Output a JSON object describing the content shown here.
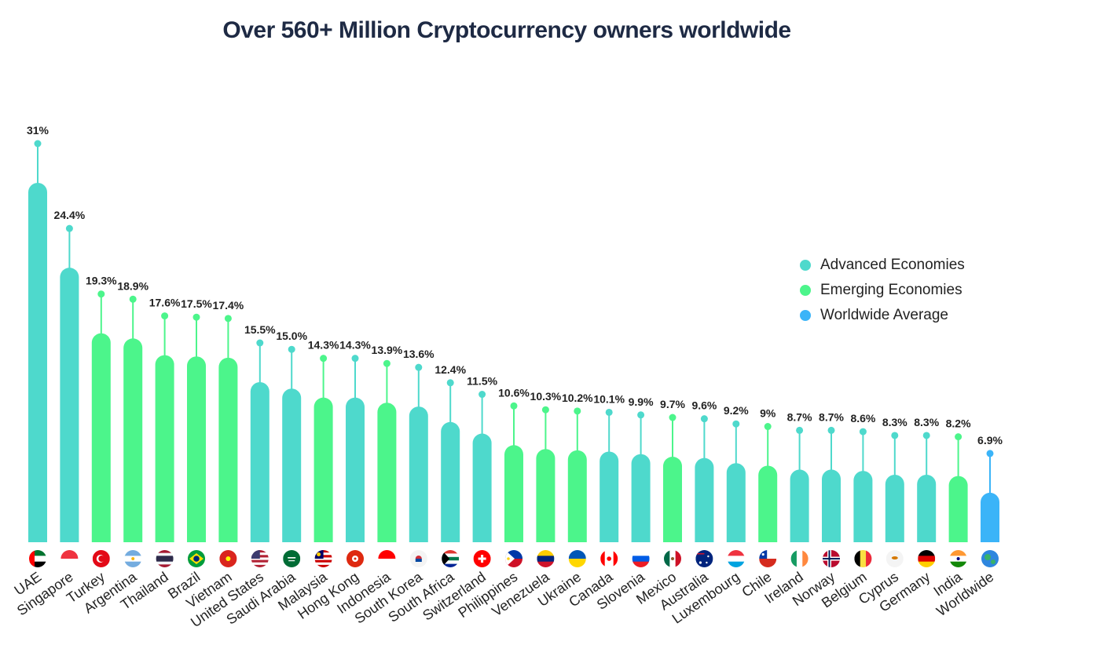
{
  "chart_data": {
    "type": "bar",
    "title": "Over 560+ Million Cryptocurrency owners worldwide",
    "xlabel": "",
    "ylabel": "",
    "categories": [
      "UAE",
      "Singapore",
      "Turkey",
      "Argentina",
      "Thailand",
      "Brazil",
      "Vietnam",
      "United States",
      "Saudi Arabia",
      "Malaysia",
      "Hong Kong",
      "Indonesia",
      "South Korea",
      "South Africa",
      "Switzerland",
      "Philippines",
      "Venezuela",
      "Ukraine",
      "Canada",
      "Slovenia",
      "Mexico",
      "Australia",
      "Luxembourg",
      "Chile",
      "Ireland",
      "Norway",
      "Belgium",
      "Cyprus",
      "Germany",
      "India",
      "Worldwide"
    ],
    "values": [
      31,
      24.4,
      19.3,
      18.9,
      17.6,
      17.5,
      17.4,
      15.5,
      15.0,
      14.3,
      14.3,
      13.9,
      13.6,
      12.4,
      11.5,
      10.6,
      10.3,
      10.2,
      10.1,
      9.9,
      9.7,
      9.6,
      9.2,
      9,
      8.7,
      8.7,
      8.6,
      8.3,
      8.3,
      8.2,
      6.9
    ],
    "value_labels": [
      "31%",
      "24.4%",
      "19.3%",
      "18.9%",
      "17.6%",
      "17.5%",
      "17.4%",
      "15.5%",
      "15.0%",
      "14.3%",
      "14.3%",
      "13.9%",
      "13.6%",
      "12.4%",
      "11.5%",
      "10.6%",
      "10.3%",
      "10.2%",
      "10.1%",
      "9.9%",
      "9.7%",
      "9.6%",
      "9.2%",
      "9%",
      "8.7%",
      "8.7%",
      "8.6%",
      "8.3%",
      "8.3%",
      "8.2%",
      "6.9%"
    ],
    "groups": [
      "Advanced Economies",
      "Advanced Economies",
      "Emerging Economies",
      "Emerging Economies",
      "Emerging Economies",
      "Emerging Economies",
      "Emerging Economies",
      "Advanced Economies",
      "Advanced Economies",
      "Emerging Economies",
      "Advanced Economies",
      "Emerging Economies",
      "Advanced Economies",
      "Advanced Economies",
      "Advanced Economies",
      "Emerging Economies",
      "Emerging Economies",
      "Emerging Economies",
      "Advanced Economies",
      "Advanced Economies",
      "Emerging Economies",
      "Advanced Economies",
      "Advanced Economies",
      "Emerging Economies",
      "Advanced Economies",
      "Advanced Economies",
      "Advanced Economies",
      "Advanced Economies",
      "Advanced Economies",
      "Emerging Economies",
      "Worldwide Average"
    ],
    "flag_icons": [
      "uae-flag-icon",
      "singapore-flag-icon",
      "turkey-flag-icon",
      "argentina-flag-icon",
      "thailand-flag-icon",
      "brazil-flag-icon",
      "vietnam-flag-icon",
      "united-states-flag-icon",
      "saudi-arabia-flag-icon",
      "malaysia-flag-icon",
      "hong-kong-flag-icon",
      "indonesia-flag-icon",
      "south-korea-flag-icon",
      "south-africa-flag-icon",
      "switzerland-flag-icon",
      "philippines-flag-icon",
      "venezuela-flag-icon",
      "ukraine-flag-icon",
      "canada-flag-icon",
      "slovenia-flag-icon",
      "mexico-flag-icon",
      "australia-flag-icon",
      "luxembourg-flag-icon",
      "chile-flag-icon",
      "ireland-flag-icon",
      "norway-flag-icon",
      "belgium-flag-icon",
      "cyprus-flag-icon",
      "germany-flag-icon",
      "india-flag-icon",
      "globe-icon"
    ],
    "legend": [
      {
        "label": "Advanced Economies",
        "color": "#4ed9cc"
      },
      {
        "label": "Emerging Economies",
        "color": "#4cf58b"
      },
      {
        "label": "Worldwide Average",
        "color": "#3bb4f8"
      }
    ],
    "legend_position": "right",
    "grid": false
  }
}
